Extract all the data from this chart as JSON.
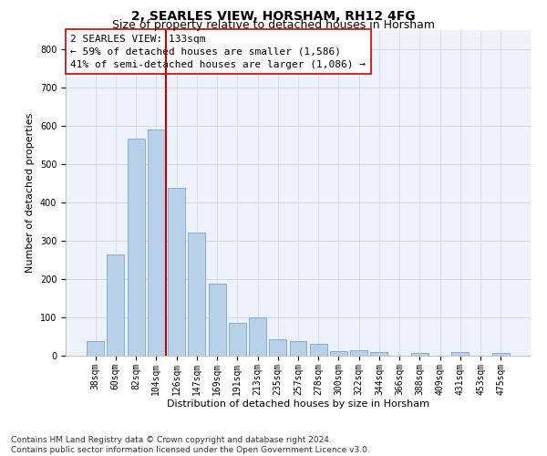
{
  "title": "2, SEARLES VIEW, HORSHAM, RH12 4FG",
  "subtitle": "Size of property relative to detached houses in Horsham",
  "xlabel": "Distribution of detached houses by size in Horsham",
  "ylabel": "Number of detached properties",
  "bar_color": "#b8d0e8",
  "bar_edge_color": "#6699cc",
  "background_color": "#eef2fa",
  "categories": [
    "38sqm",
    "60sqm",
    "82sqm",
    "104sqm",
    "126sqm",
    "147sqm",
    "169sqm",
    "191sqm",
    "213sqm",
    "235sqm",
    "257sqm",
    "278sqm",
    "300sqm",
    "322sqm",
    "344sqm",
    "366sqm",
    "388sqm",
    "409sqm",
    "431sqm",
    "453sqm",
    "475sqm"
  ],
  "values": [
    38,
    265,
    567,
    590,
    437,
    320,
    188,
    85,
    100,
    42,
    37,
    30,
    13,
    15,
    10,
    0,
    7,
    0,
    10,
    0,
    7
  ],
  "vline_position": 3.5,
  "vline_color": "#cc0000",
  "annotation_text": "2 SEARLES VIEW: 133sqm\n← 59% of detached houses are smaller (1,586)\n41% of semi-detached houses are larger (1,086) →",
  "annotation_box_color": "white",
  "annotation_box_edgecolor": "#cc0000",
  "ylim": [
    0,
    850
  ],
  "yticks": [
    0,
    100,
    200,
    300,
    400,
    500,
    600,
    700,
    800
  ],
  "footer_line1": "Contains HM Land Registry data © Crown copyright and database right 2024.",
  "footer_line2": "Contains public sector information licensed under the Open Government Licence v3.0.",
  "grid_color": "#c8d4e8",
  "title_fontsize": 10,
  "subtitle_fontsize": 9,
  "xlabel_fontsize": 8,
  "ylabel_fontsize": 8,
  "tick_fontsize": 7,
  "annotation_fontsize": 8,
  "footer_fontsize": 6.5
}
